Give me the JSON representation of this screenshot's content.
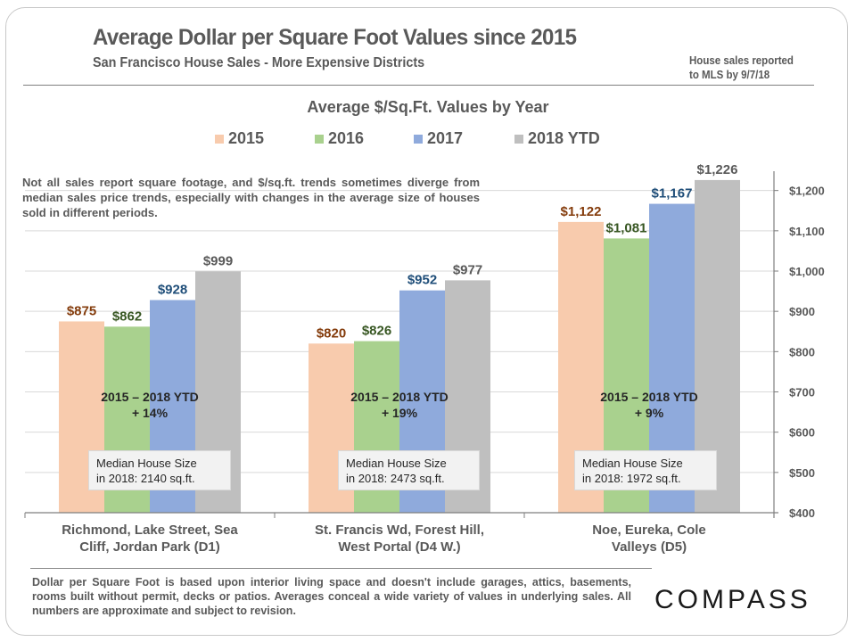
{
  "header": {
    "title": "Average Dollar per Square Foot Values since 2015",
    "subtitle": "San Francisco House Sales - More Expensive Districts",
    "note_line1": "House sales reported",
    "note_line2": "to MLS by 9/7/18"
  },
  "caveat": "Not all sales report square footage, and $/sq.ft. trends sometimes diverge from median sales price trends, especially with changes in the average size of houses sold in different periods.",
  "footer": {
    "text": "Dollar per Square Foot is based upon interior living space and doesn't include garages, attics, basements, rooms built without permit, decks or patios. Averages conceal a wide variety of values in underlying sales. All numbers are approximate and subject to revision.",
    "logo": "COMPASS"
  },
  "annotations": [
    {
      "growth_line1": "2015 – 2018 YTD",
      "growth_line2": "+ 14%",
      "size_line1": "Median House Size",
      "size_line2": "in 2018: 2140 sq.ft."
    },
    {
      "growth_line1": "2015 – 2018 YTD",
      "growth_line2": "+ 19%",
      "size_line1": "Median House Size",
      "size_line2": "in 2018: 2473 sq.ft."
    },
    {
      "growth_line1": "2015 – 2018 YTD",
      "growth_line2": "+ 9%",
      "size_line1": "Median House Size",
      "size_line2": "in 2018: 1972 sq.ft."
    }
  ],
  "chart_data": {
    "type": "bar",
    "title": "Average $/Sq.Ft. Values by Year",
    "xlabel": "",
    "ylabel": "",
    "ylim": [
      400,
      1250
    ],
    "yticks": [
      400,
      500,
      600,
      700,
      800,
      900,
      1000,
      1100,
      1200
    ],
    "ytick_labels": [
      "$400",
      "$500",
      "$600",
      "$700",
      "$800",
      "$900",
      "$1,000",
      "$1,100",
      "$1,200"
    ],
    "y_axis_side": "right",
    "grid": true,
    "legend_position": "top",
    "categories": [
      "Richmond, Lake Street,  Sea Cliff, Jordan Park (D1)",
      "St. Francis Wd, Forest Hill, West Portal (D4 W.)",
      "Noe, Eureka, Cole Valleys (D5)"
    ],
    "category_lines": [
      [
        "Richmond, Lake Street,  Sea",
        "Cliff, Jordan Park (D1)"
      ],
      [
        "St. Francis Wd, Forest Hill,",
        "West Portal (D4 W.)"
      ],
      [
        "Noe, Eureka, Cole",
        "Valleys (D5)"
      ]
    ],
    "series": [
      {
        "name": "2015",
        "color": "#f8cbad",
        "label_color": "#843c0c",
        "values": [
          875,
          820,
          1122
        ],
        "labels": [
          "$875",
          "$820",
          "$1,122"
        ]
      },
      {
        "name": "2016",
        "color": "#a9d18e",
        "label_color": "#385723",
        "values": [
          862,
          826,
          1081
        ],
        "labels": [
          "$862",
          "$826",
          "$1,081"
        ]
      },
      {
        "name": "2017",
        "color": "#8faadc",
        "label_color": "#1f4e79",
        "values": [
          928,
          952,
          1167
        ],
        "labels": [
          "$928",
          "$952",
          "$1,167"
        ]
      },
      {
        "name": "2018 YTD",
        "color": "#bfbfbf",
        "label_color": "#595959",
        "values": [
          999,
          977,
          1226
        ],
        "labels": [
          "$999",
          "$977",
          "$1,226"
        ]
      }
    ]
  }
}
